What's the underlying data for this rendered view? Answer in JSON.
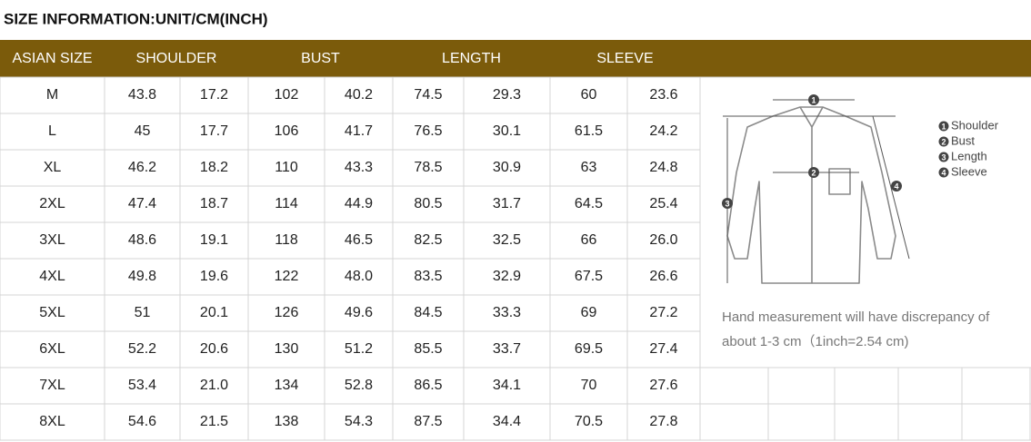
{
  "header": {
    "title": "SIZE INFORMATION:UNIT/CM(INCH)"
  },
  "table": {
    "columns": [
      "ASIAN SIZE",
      "SHOULDER",
      "BUST",
      "LENGTH",
      "SLEEVE"
    ],
    "rows": [
      [
        "M",
        "43.8",
        "17.2",
        "102",
        "40.2",
        "74.5",
        "29.3",
        "60",
        "23.6"
      ],
      [
        "L",
        "45",
        "17.7",
        "106",
        "41.7",
        "76.5",
        "30.1",
        "61.5",
        "24.2"
      ],
      [
        "XL",
        "46.2",
        "18.2",
        "110",
        "43.3",
        "78.5",
        "30.9",
        "63",
        "24.8"
      ],
      [
        "2XL",
        "47.4",
        "18.7",
        "114",
        "44.9",
        "80.5",
        "31.7",
        "64.5",
        "25.4"
      ],
      [
        "3XL",
        "48.6",
        "19.1",
        "118",
        "46.5",
        "82.5",
        "32.5",
        "66",
        "26.0"
      ],
      [
        "4XL",
        "49.8",
        "19.6",
        "122",
        "48.0",
        "83.5",
        "32.9",
        "67.5",
        "26.6"
      ],
      [
        "5XL",
        "51",
        "20.1",
        "126",
        "49.6",
        "84.5",
        "33.3",
        "69",
        "27.2"
      ],
      [
        "6XL",
        "52.2",
        "20.6",
        "130",
        "51.2",
        "85.5",
        "33.7",
        "69.5",
        "27.4"
      ],
      [
        "7XL",
        "53.4",
        "21.0",
        "134",
        "52.8",
        "86.5",
        "34.1",
        "70",
        "27.6"
      ],
      [
        "8XL",
        "54.6",
        "21.5",
        "138",
        "54.3",
        "87.5",
        "34.4",
        "70.5",
        "27.8"
      ]
    ]
  },
  "diagram": {
    "legend": [
      {
        "number": "1",
        "label": "Shoulder"
      },
      {
        "number": "2",
        "label": "Bust"
      },
      {
        "number": "3",
        "label": "Length"
      },
      {
        "number": "4",
        "label": "Sleeve"
      }
    ],
    "note": [
      "Hand measurement will have discrepancy of",
      "about 1-3 cm（1inch=2.54 cm)"
    ]
  }
}
